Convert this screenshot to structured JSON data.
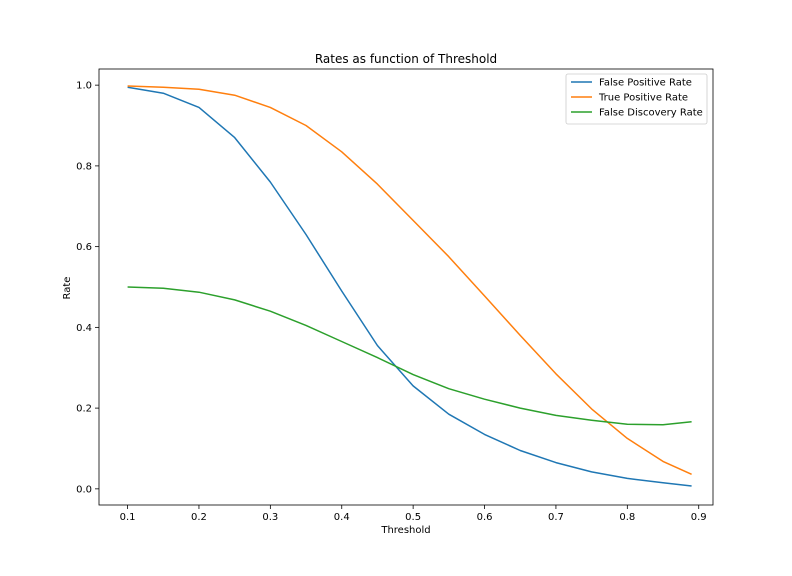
{
  "chart_data": {
    "type": "line",
    "title": "Rates as function of Threshold",
    "xlabel": "Threshold",
    "ylabel": "Rate",
    "xlim": [
      0.06,
      0.92
    ],
    "ylim": [
      -0.04,
      1.04
    ],
    "xticks": [
      0.1,
      0.2,
      0.3,
      0.4,
      0.5,
      0.6,
      0.7,
      0.8,
      0.9
    ],
    "xtick_labels": [
      "0.1",
      "0.2",
      "0.3",
      "0.4",
      "0.5",
      "0.6",
      "0.7",
      "0.8",
      "0.9"
    ],
    "yticks": [
      0.0,
      0.2,
      0.4,
      0.6,
      0.8,
      1.0
    ],
    "ytick_labels": [
      "0.0",
      "0.2",
      "0.4",
      "0.6",
      "0.8",
      "1.0"
    ],
    "grid": false,
    "legend_position": "top-right",
    "x": [
      0.1,
      0.15,
      0.2,
      0.25,
      0.3,
      0.35,
      0.4,
      0.45,
      0.5,
      0.55,
      0.6,
      0.65,
      0.7,
      0.75,
      0.8,
      0.85,
      0.89
    ],
    "series": [
      {
        "name": "False Positive Rate",
        "color": "#1f77b4",
        "values": [
          0.995,
          0.98,
          0.945,
          0.87,
          0.76,
          0.63,
          0.49,
          0.355,
          0.255,
          0.185,
          0.135,
          0.095,
          0.065,
          0.042,
          0.026,
          0.015,
          0.007
        ]
      },
      {
        "name": "True Positive Rate",
        "color": "#ff7f0e",
        "values": [
          0.998,
          0.995,
          0.99,
          0.975,
          0.945,
          0.9,
          0.835,
          0.755,
          0.665,
          0.575,
          0.478,
          0.38,
          0.285,
          0.198,
          0.125,
          0.068,
          0.036
        ]
      },
      {
        "name": "False Discovery Rate",
        "color": "#2ca02c",
        "values": [
          0.5,
          0.497,
          0.487,
          0.468,
          0.44,
          0.405,
          0.365,
          0.325,
          0.283,
          0.248,
          0.222,
          0.2,
          0.182,
          0.17,
          0.16,
          0.159,
          0.166
        ]
      }
    ]
  }
}
